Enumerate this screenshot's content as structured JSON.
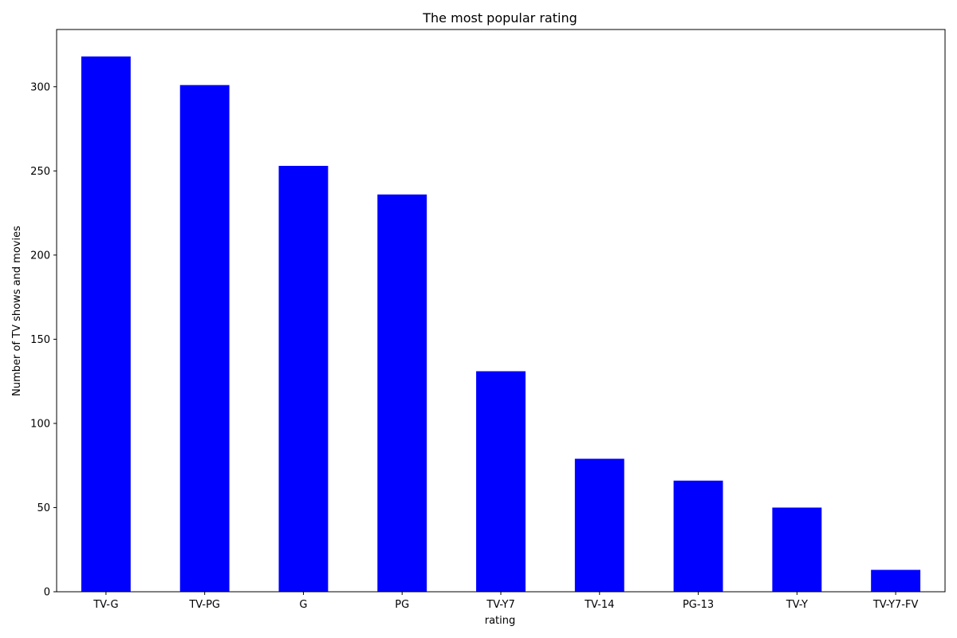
{
  "chart_data": {
    "type": "bar",
    "title": "The most popular rating",
    "xlabel": "rating",
    "ylabel": "Number of TV shows and movies",
    "categories": [
      "TV-G",
      "TV-PG",
      "G",
      "PG",
      "TV-Y7",
      "TV-14",
      "PG-13",
      "TV-Y",
      "TV-Y7-FV"
    ],
    "values": [
      318,
      301,
      253,
      236,
      131,
      79,
      66,
      50,
      13
    ],
    "ylim": [
      0,
      334
    ],
    "yticks": [
      0,
      50,
      100,
      150,
      200,
      250,
      300
    ],
    "grid": false,
    "bar_color": "#0000ff"
  }
}
